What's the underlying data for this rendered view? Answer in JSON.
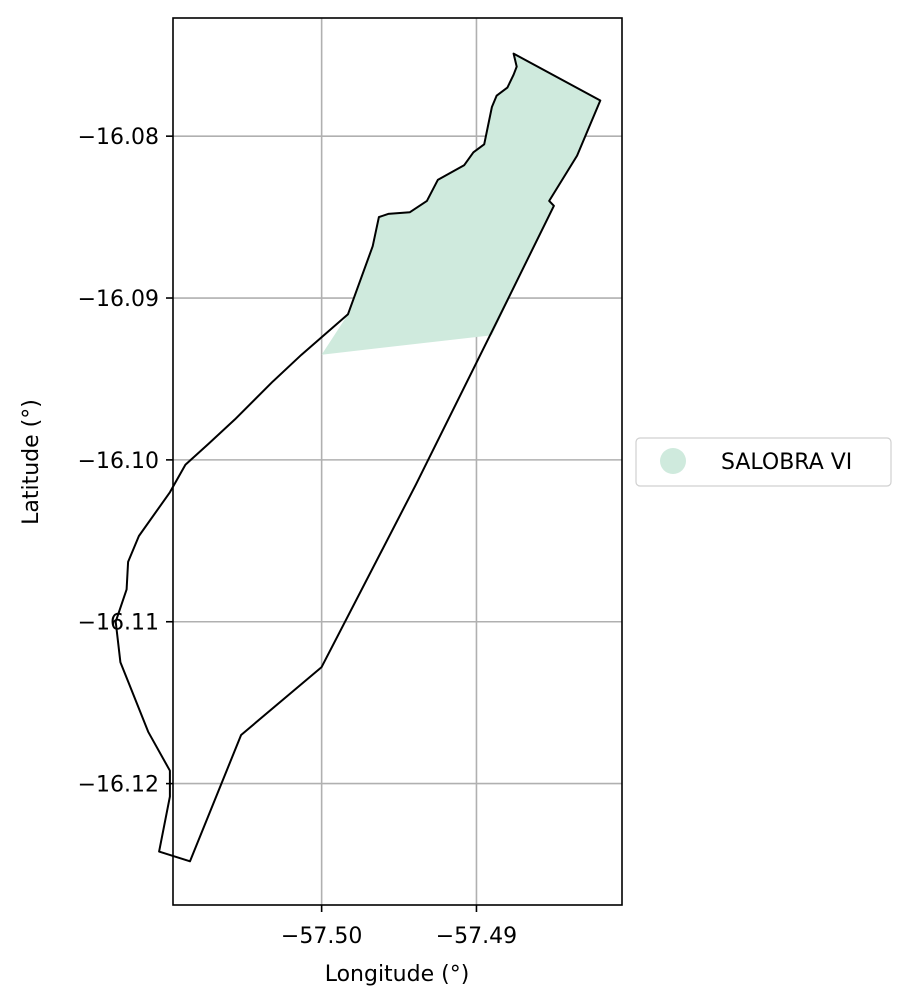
{
  "chart_data": {
    "type": "map",
    "xlabel": "Longitude (°)",
    "ylabel": "Latitude (°)",
    "xlim": [
      -57.5096,
      -57.4806
    ],
    "ylim": [
      -16.1275,
      -16.0727
    ],
    "grid": true,
    "xticks": [
      {
        "value": -57.5,
        "label": "−57.50"
      },
      {
        "value": -57.49,
        "label": "−57.49"
      }
    ],
    "yticks": [
      {
        "value": -16.08,
        "label": "−16.08"
      },
      {
        "value": -16.09,
        "label": "−16.09"
      },
      {
        "value": -16.1,
        "label": "−16.10"
      },
      {
        "value": -16.11,
        "label": "−16.11"
      },
      {
        "value": -16.12,
        "label": "−16.12"
      }
    ],
    "legend": {
      "placement": "right",
      "entries": [
        {
          "label": "SALOBRA VI",
          "color": "#cfeadd"
        }
      ]
    },
    "boundary": [
      [
        -57.4876,
        -16.0749
      ],
      [
        -57.482,
        -16.0778
      ],
      [
        -57.4835,
        -16.0812
      ],
      [
        -57.4853,
        -16.084
      ],
      [
        -57.485,
        -16.0843
      ],
      [
        -57.4886,
        -16.0913
      ],
      [
        -57.4939,
        -16.1015
      ],
      [
        -57.5,
        -16.1128
      ],
      [
        -57.5052,
        -16.117
      ],
      [
        -57.5085,
        -16.1248
      ],
      [
        -57.5105,
        -16.1242
      ],
      [
        -57.5098,
        -16.1208
      ],
      [
        -57.5098,
        -16.1192
      ],
      [
        -57.5112,
        -16.1168
      ],
      [
        -57.513,
        -16.1125
      ],
      [
        -57.5133,
        -16.11
      ],
      [
        -57.5126,
        -16.108
      ],
      [
        -57.5125,
        -16.1063
      ],
      [
        -57.5118,
        -16.1047
      ],
      [
        -57.5098,
        -16.102
      ],
      [
        -57.5088,
        -16.1003
      ],
      [
        -57.5073,
        -16.099
      ],
      [
        -57.5056,
        -16.0975
      ],
      [
        -57.5032,
        -16.0952
      ],
      [
        -57.5013,
        -16.0935
      ],
      [
        -57.4983,
        -16.091
      ],
      [
        -57.4967,
        -16.0868
      ],
      [
        -57.4963,
        -16.085
      ],
      [
        -57.4957,
        -16.0848
      ],
      [
        -57.4943,
        -16.0847
      ],
      [
        -57.4932,
        -16.084
      ],
      [
        -57.4925,
        -16.0827
      ],
      [
        -57.4908,
        -16.0818
      ],
      [
        -57.4902,
        -16.081
      ],
      [
        -57.4895,
        -16.0805
      ],
      [
        -57.489,
        -16.0782
      ],
      [
        -57.4887,
        -16.0775
      ],
      [
        -57.488,
        -16.077
      ],
      [
        -57.4876,
        -16.0762
      ],
      [
        -57.4874,
        -16.0757
      ],
      [
        -57.4876,
        -16.0749
      ]
    ],
    "highlight": {
      "name": "SALOBRA VI",
      "color": "#cfeadd",
      "polygon": [
        [
          -57.4876,
          -16.0749
        ],
        [
          -57.482,
          -16.0778
        ],
        [
          -57.4835,
          -16.0812
        ],
        [
          -57.4853,
          -16.084
        ],
        [
          -57.485,
          -16.0843
        ],
        [
          -57.489,
          -16.0923
        ],
        [
          -57.5,
          -16.0935
        ],
        [
          -57.4983,
          -16.091
        ],
        [
          -57.4967,
          -16.0868
        ],
        [
          -57.4963,
          -16.085
        ],
        [
          -57.4957,
          -16.0848
        ],
        [
          -57.4943,
          -16.0847
        ],
        [
          -57.4932,
          -16.084
        ],
        [
          -57.4925,
          -16.0827
        ],
        [
          -57.4908,
          -16.0818
        ],
        [
          -57.4902,
          -16.081
        ],
        [
          -57.4895,
          -16.0805
        ],
        [
          -57.489,
          -16.0782
        ],
        [
          -57.4887,
          -16.0775
        ],
        [
          -57.488,
          -16.077
        ],
        [
          -57.4876,
          -16.0762
        ],
        [
          -57.4874,
          -16.0757
        ],
        [
          -57.4876,
          -16.0749
        ]
      ]
    }
  }
}
